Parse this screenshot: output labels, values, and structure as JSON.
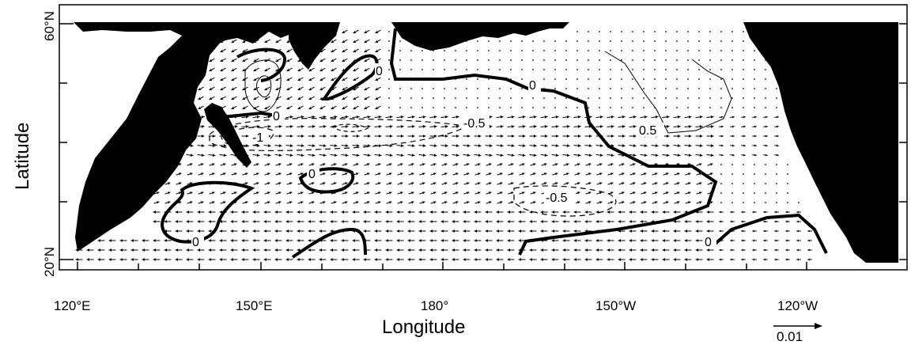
{
  "figure": {
    "x_axis_label": "Longitude",
    "y_axis_label": "Latitude",
    "x_ticks": [
      "120°E",
      "150°E",
      "180°",
      "150°W",
      "120°W"
    ],
    "y_ticks": [
      "60°N",
      "20°N"
    ],
    "scale_arrow_label": "0.01",
    "contour_labels": [
      "0",
      "0",
      "0",
      "0",
      "0",
      "-1",
      "-0.5",
      "-0.5",
      "0.5"
    ]
  },
  "colors": {
    "land": "#000000",
    "ocean": "#ffffff",
    "contour": "#000000"
  }
}
